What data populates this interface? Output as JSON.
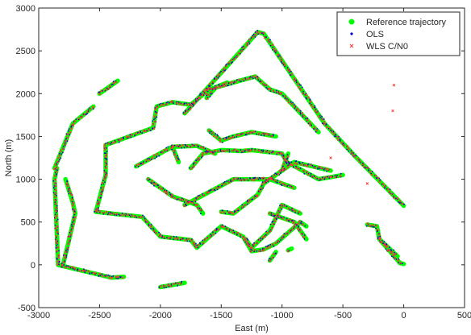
{
  "chart_data": {
    "type": "scatter",
    "xlabel": "East (m)",
    "ylabel": "North (m)",
    "xlim": [
      -3000,
      500
    ],
    "ylim": [
      -500,
      3000
    ],
    "xticks": [
      -3000,
      -2500,
      -2000,
      -1500,
      -1000,
      -500,
      0,
      500
    ],
    "yticks": [
      -500,
      0,
      500,
      1000,
      1500,
      2000,
      2500,
      3000
    ],
    "xtick_labels": [
      "-3000",
      "-2500",
      "-2000",
      "-1500",
      "-1000",
      "-500",
      "0",
      "500"
    ],
    "ytick_labels": [
      "-500",
      "0",
      "500",
      "1000",
      "1500",
      "2000",
      "2500",
      "3000"
    ],
    "grid": false,
    "legend_position": "top-right",
    "series": [
      {
        "name": "Reference trajectory",
        "color": "#00ff00",
        "marker": "filled-circle",
        "paths": [
          [
            [
              -2850,
              1130
            ],
            [
              -2870,
              1000
            ],
            [
              -2840,
              0
            ],
            [
              -2400,
              -150
            ]
          ],
          [
            [
              -2870,
              1130
            ],
            [
              -2720,
              1650
            ],
            [
              -2550,
              1850
            ]
          ],
          [
            [
              -2500,
              2000
            ],
            [
              -2350,
              2150
            ]
          ],
          [
            [
              -2800,
              0
            ],
            [
              -2700,
              600
            ],
            [
              -2720,
              730
            ],
            [
              -2780,
              1000
            ]
          ],
          [
            [
              -2400,
              -150
            ],
            [
              -2300,
              -140
            ]
          ],
          [
            [
              -1800,
              1770
            ],
            [
              -1200,
              2720
            ],
            [
              -1150,
              2700
            ],
            [
              -650,
              1650
            ],
            [
              -400,
              1270
            ],
            [
              0,
              690
            ]
          ],
          [
            [
              -2530,
              620
            ],
            [
              -2450,
              1050
            ],
            [
              -2450,
              1400
            ],
            [
              -2060,
              1600
            ],
            [
              -2030,
              1850
            ],
            [
              -1900,
              1900
            ],
            [
              -1750,
              1870
            ],
            [
              -1600,
              2050
            ],
            [
              -1350,
              2150
            ],
            [
              -1220,
              2200
            ],
            [
              -1100,
              2050
            ],
            [
              -1000,
              2000
            ],
            [
              -900,
              1850
            ],
            [
              -700,
              1550
            ]
          ],
          [
            [
              -1620,
              1950
            ],
            [
              -1540,
              2080
            ],
            [
              -1450,
              2130
            ]
          ],
          [
            [
              -2530,
              620
            ],
            [
              -2150,
              560
            ],
            [
              -2000,
              330
            ],
            [
              -1750,
              290
            ],
            [
              -1700,
              200
            ],
            [
              -1500,
              450
            ],
            [
              -1320,
              330
            ],
            [
              -1250,
              160
            ],
            [
              -1150,
              180
            ],
            [
              -1050,
              250
            ],
            [
              -850,
              500
            ],
            [
              -800,
              450
            ]
          ],
          [
            [
              -2100,
              1000
            ],
            [
              -1900,
              800
            ],
            [
              -1700,
              700
            ],
            [
              -1650,
              600
            ]
          ],
          [
            [
              -1750,
              1130
            ],
            [
              -1650,
              1300
            ],
            [
              -1500,
              1340
            ],
            [
              -1330,
              1330
            ],
            [
              -1250,
              1340
            ],
            [
              -1000,
              1300
            ],
            [
              -960,
              1200
            ],
            [
              -700,
              1000
            ],
            [
              -500,
              1050
            ]
          ],
          [
            [
              -2200,
              1150
            ],
            [
              -1900,
              1380
            ],
            [
              -1700,
              1390
            ],
            [
              -1550,
              1300
            ]
          ],
          [
            [
              -1600,
              1570
            ],
            [
              -1500,
              1450
            ],
            [
              -1400,
              1500
            ],
            [
              -1250,
              1550
            ],
            [
              -1050,
              1500
            ]
          ],
          [
            [
              -1900,
              1380
            ],
            [
              -1850,
              1200
            ]
          ],
          [
            [
              -1800,
              700
            ],
            [
              -1400,
              1000
            ],
            [
              -1100,
              1000
            ],
            [
              -900,
              900
            ]
          ],
          [
            [
              -1500,
              620
            ],
            [
              -1400,
              600
            ],
            [
              -1200,
              820
            ],
            [
              -1150,
              950
            ],
            [
              -1000,
              1100
            ],
            [
              -950,
              1300
            ]
          ],
          [
            [
              -1300,
              300
            ],
            [
              -1250,
              200
            ],
            [
              -1100,
              400
            ],
            [
              -1000,
              700
            ],
            [
              -850,
              600
            ]
          ],
          [
            [
              -1100,
              600
            ],
            [
              -900,
              500
            ],
            [
              -800,
              300
            ]
          ],
          [
            [
              -1000,
              1100
            ],
            [
              -900,
              1200
            ],
            [
              -600,
              1100
            ]
          ],
          [
            [
              -300,
              470
            ],
            [
              -220,
              450
            ],
            [
              -200,
              300
            ],
            [
              -30,
              20
            ],
            [
              0,
              10
            ]
          ],
          [
            [
              -200,
              300
            ],
            [
              -50,
              100
            ]
          ],
          [
            [
              -2000,
              -260
            ],
            [
              -1800,
              -210
            ]
          ],
          [
            [
              -950,
              170
            ],
            [
              -920,
              190
            ]
          ],
          [
            [
              -1100,
              50
            ],
            [
              -1050,
              150
            ]
          ]
        ]
      },
      {
        "name": "OLS",
        "color": "#0000cc",
        "marker": "dot"
      },
      {
        "name": "WLS C/N0",
        "color": "#ff3333",
        "marker": "cross"
      }
    ],
    "outliers": [
      [
        -80,
        2100
      ],
      [
        -90,
        1800
      ],
      [
        -600,
        1250
      ],
      [
        -300,
        950
      ],
      [
        -1950,
        850
      ]
    ]
  }
}
